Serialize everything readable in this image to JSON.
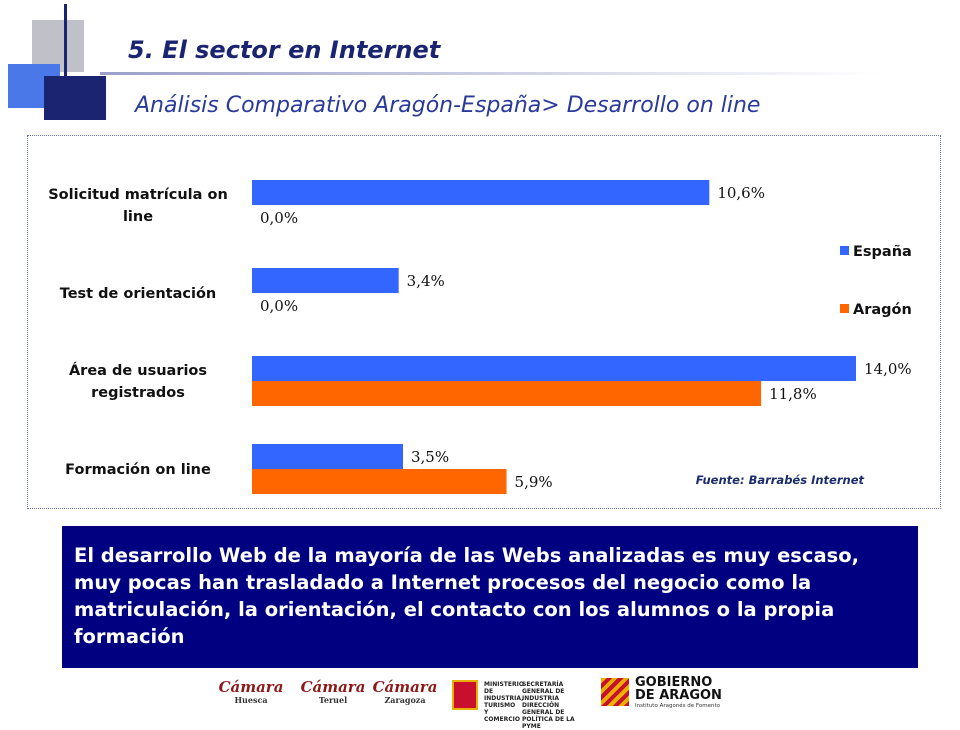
{
  "header": {
    "title": "5. El sector en Internet",
    "subtitle": "Análisis Comparativo Aragón-España> Desarrollo on line"
  },
  "colors": {
    "espana": "#3366ff",
    "aragon": "#ff6600",
    "conclusion_bg": "#000080",
    "title": "#1a2470"
  },
  "chart_data": {
    "type": "bar",
    "orientation": "horizontal",
    "categories": [
      [
        "Solicitud matrícula on",
        "line"
      ],
      [
        "Test de orientación"
      ],
      [
        "Área de usuarios",
        "registrados"
      ],
      [
        "Formación on line"
      ]
    ],
    "series": [
      {
        "name": "España",
        "values": [
          10.6,
          3.4,
          14.0,
          3.5
        ],
        "labels": [
          "10,6%",
          "3,4%",
          "14,0%",
          "3,5%"
        ]
      },
      {
        "name": "Aragón",
        "values": [
          0.0,
          0.0,
          11.8,
          5.9
        ],
        "labels": [
          "0,0%",
          "0,0%",
          "11,8%",
          "5,9%"
        ]
      }
    ],
    "xlim": [
      0,
      14.0
    ],
    "grid": false,
    "legend_position": "right",
    "source": "Fuente: Barrabés Internet"
  },
  "conclusion": {
    "text": "El desarrollo Web de la mayoría de las Webs analizadas es muy escaso, muy pocas han trasladado a Internet procesos del negocio como la matriculación, la orientación, el contacto con los alumnos o la propia formación"
  },
  "footer_logos": {
    "camara_name": "Cámara",
    "camara_huesca": "Huesca",
    "camara_teruel": "Teruel",
    "camara_zaragoza": "Zaragoza",
    "ministerio": "MINISTERIO DE INDUSTRIA, TURISMO Y COMERCIO",
    "secretaria": "SECRETARÍA GENERAL DE INDUSTRIA DIRECCIÓN GENERAL DE POLÍTICA DE LA PYME",
    "gobierno": "GOBIERNO DE ARAGON",
    "instituto": "Instituto Aragonés de Fomento"
  }
}
